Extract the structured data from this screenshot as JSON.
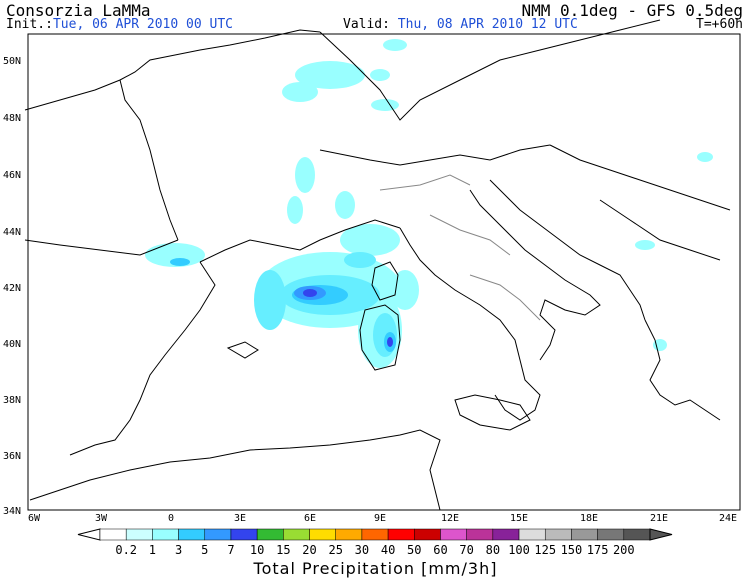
{
  "header": {
    "org": "Consorzia LaMMa",
    "model": "NMM 0.1deg - GFS 0.5deg",
    "init_label": "Init.:",
    "init_value": "Tue, 06 APR 2010  00 UTC",
    "valid_label": "Valid:",
    "valid_value": "Thu, 08 APR 2010  12 UTC",
    "timestep": "T=+60h"
  },
  "map": {
    "lat_labels": [
      "50N",
      "48N",
      "46N",
      "44N",
      "42N",
      "40N",
      "38N",
      "36N",
      "34N"
    ],
    "lon_labels": [
      "6W",
      "3W",
      "0",
      "3E",
      "6E",
      "9E",
      "12E",
      "15E",
      "18E",
      "21E",
      "24E"
    ]
  },
  "colorbar": {
    "title": "Total Precipitation [mm/3h]",
    "labels": [
      "0.2",
      "1",
      "3",
      "5",
      "7",
      "10",
      "15",
      "20",
      "25",
      "30",
      "40",
      "50",
      "60",
      "70",
      "80",
      "100",
      "125",
      "150",
      "175",
      "200"
    ],
    "colors": [
      "#ffffff",
      "#ccffff",
      "#99ffff",
      "#33ccff",
      "#3399ff",
      "#3344ee",
      "#33bb33",
      "#99dd33",
      "#ffdd00",
      "#ffaa00",
      "#ff6600",
      "#ff0000",
      "#cc0000",
      "#dd55cc",
      "#bb3399",
      "#882299",
      "#dddddd",
      "#bbbbbb",
      "#999999",
      "#777777",
      "#555555"
    ]
  },
  "colors": {
    "precip_light": "#99ffff",
    "precip_mid": "#66eeff",
    "precip_blue": "#3399ff",
    "precip_dark": "#3344ee",
    "land_outline": "#000000",
    "italy_regions": "#888888"
  }
}
